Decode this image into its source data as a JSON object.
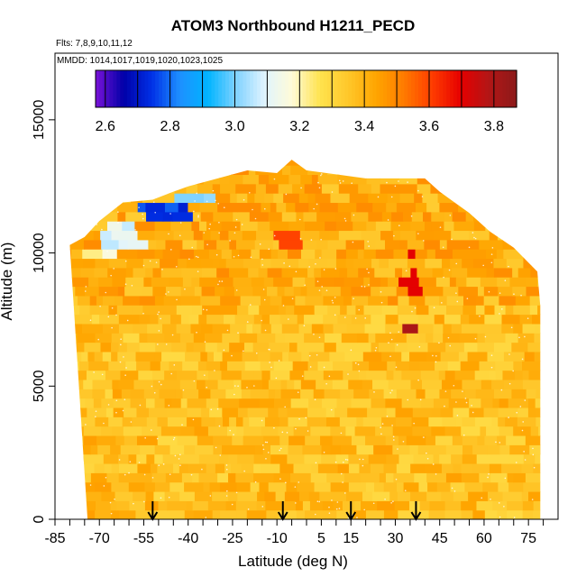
{
  "chart_data": {
    "type": "heatmap",
    "title": "ATOM3 Northbound H1211_PECD",
    "notes": [
      "Flts: 7,8,9,10,11,12",
      "MMDD: 1014,1017,1019,1020,1023,1025"
    ],
    "xlabel": "Latitude (deg N)",
    "ylabel": "Altitude (m)",
    "xlim": [
      -85,
      85
    ],
    "ylim": [
      0,
      17500
    ],
    "x_ticks": [
      -85,
      -70,
      -55,
      -40,
      -25,
      -10,
      5,
      15,
      30,
      45,
      60,
      75
    ],
    "y_ticks": [
      0,
      5000,
      10000,
      15000
    ],
    "colorbar": {
      "ticks": [
        2.6,
        2.8,
        3.0,
        3.2,
        3.4,
        3.6,
        3.8
      ],
      "range": [
        2.57,
        3.87
      ],
      "colors": [
        "#7a12d8",
        "#0000a8",
        "#0030e6",
        "#1e90ff",
        "#00b4ff",
        "#7fd2ff",
        "#dff3ff",
        "#fffbd8",
        "#ffe34e",
        "#ffc72a",
        "#ffa500",
        "#ff7a00",
        "#ff3c00",
        "#e60000",
        "#b31616",
        "#8b1a1a"
      ]
    },
    "flight_markers_latitude": [
      -52,
      -8,
      15,
      37
    ],
    "field": {
      "altitude_top_m": [
        [
          -80,
          10300
        ],
        [
          -75,
          10600
        ],
        [
          -70,
          11200
        ],
        [
          -62,
          11900
        ],
        [
          -52,
          12000
        ],
        [
          -45,
          12300
        ],
        [
          -40,
          12500
        ],
        [
          -30,
          12800
        ],
        [
          -20,
          13100
        ],
        [
          -10,
          13000
        ],
        [
          -5,
          13500
        ],
        [
          0,
          13100
        ],
        [
          20,
          12800
        ],
        [
          30,
          12800
        ],
        [
          40,
          12800
        ],
        [
          45,
          12300
        ],
        [
          55,
          11500
        ],
        [
          62,
          10800
        ],
        [
          70,
          10200
        ],
        [
          78,
          9300
        ]
      ],
      "mean_value_near_surface": 3.37,
      "upper_troposphere_values": [
        {
          "latitude": [
            -57,
            -40
          ],
          "altitude": [
            11200,
            11900
          ],
          "value": 2.75
        },
        {
          "latitude": [
            -45,
            -30
          ],
          "altitude": [
            11800,
            12300
          ],
          "value": 3.0
        },
        {
          "latitude": [
            -70,
            -55
          ],
          "altitude": [
            10000,
            11200
          ],
          "value": 3.1
        },
        {
          "latitude": [
            -75,
            -62
          ],
          "altitude": [
            9800,
            10300
          ],
          "value": 3.2
        }
      ],
      "enhancements": [
        {
          "latitude": [
            34,
            37
          ],
          "altitude": [
            8500,
            10000
          ],
          "value": 3.7
        },
        {
          "latitude": [
            34,
            37
          ],
          "altitude": [
            7000,
            7500
          ],
          "value": 3.8
        },
        {
          "latitude": [
            -10,
            0
          ],
          "altitude": [
            10000,
            10800
          ],
          "value": 3.6
        }
      ]
    }
  }
}
